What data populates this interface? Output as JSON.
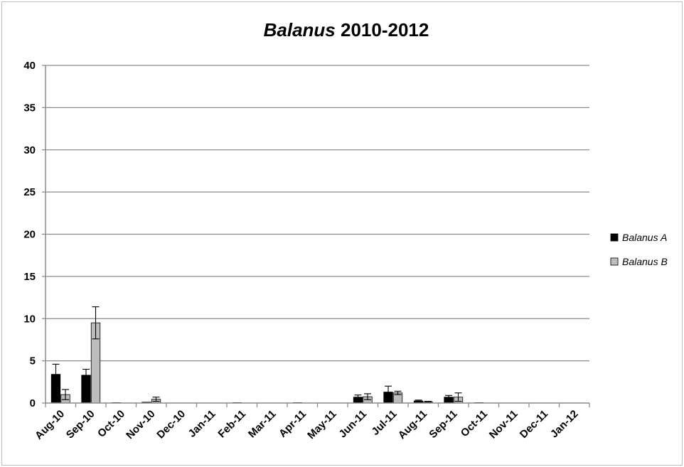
{
  "chart_data": {
    "type": "bar",
    "title": "2010-2012",
    "title_italic": "Balanus",
    "xlabel": "",
    "ylabel": "",
    "ylim": [
      0,
      40
    ],
    "yticks": [
      0,
      5,
      10,
      15,
      20,
      25,
      30,
      35,
      40
    ],
    "grid": true,
    "legend_position": "right",
    "categories": [
      "Aug-10",
      "Sep-10",
      "Oct-10",
      "Nov-10",
      "Dec-10",
      "Jan-11",
      "Feb-11",
      "Mar-11",
      "Apr-11",
      "May-11",
      "Jun-11",
      "Jul-11",
      "Aug-11",
      "Sep-11",
      "Oct-11",
      "Nov-11",
      "Dec-11",
      "Jan-12"
    ],
    "series": [
      {
        "name": "Balanus A",
        "color": "#000000",
        "values": [
          3.4,
          3.3,
          0.05,
          0.1,
          0,
          0,
          0.05,
          0,
          0.05,
          0,
          0.7,
          1.3,
          0.25,
          0.7,
          0.05,
          0,
          0,
          0
        ],
        "errors": [
          1.2,
          0.7,
          0,
          0,
          0,
          0,
          0,
          0,
          0,
          0,
          0.25,
          0.7,
          0.1,
          0.2,
          0,
          0,
          0,
          0
        ]
      },
      {
        "name": "Balanus B",
        "color": "#bdbdbd",
        "values": [
          1.0,
          9.5,
          0,
          0.45,
          0,
          0,
          0,
          0,
          0,
          0,
          0.75,
          1.2,
          0.15,
          0.7,
          0,
          0,
          0,
          0
        ],
        "errors": [
          0.6,
          1.9,
          0,
          0.25,
          0,
          0,
          0,
          0,
          0,
          0,
          0.35,
          0.2,
          0.05,
          0.5,
          0,
          0,
          0,
          0
        ]
      }
    ]
  }
}
